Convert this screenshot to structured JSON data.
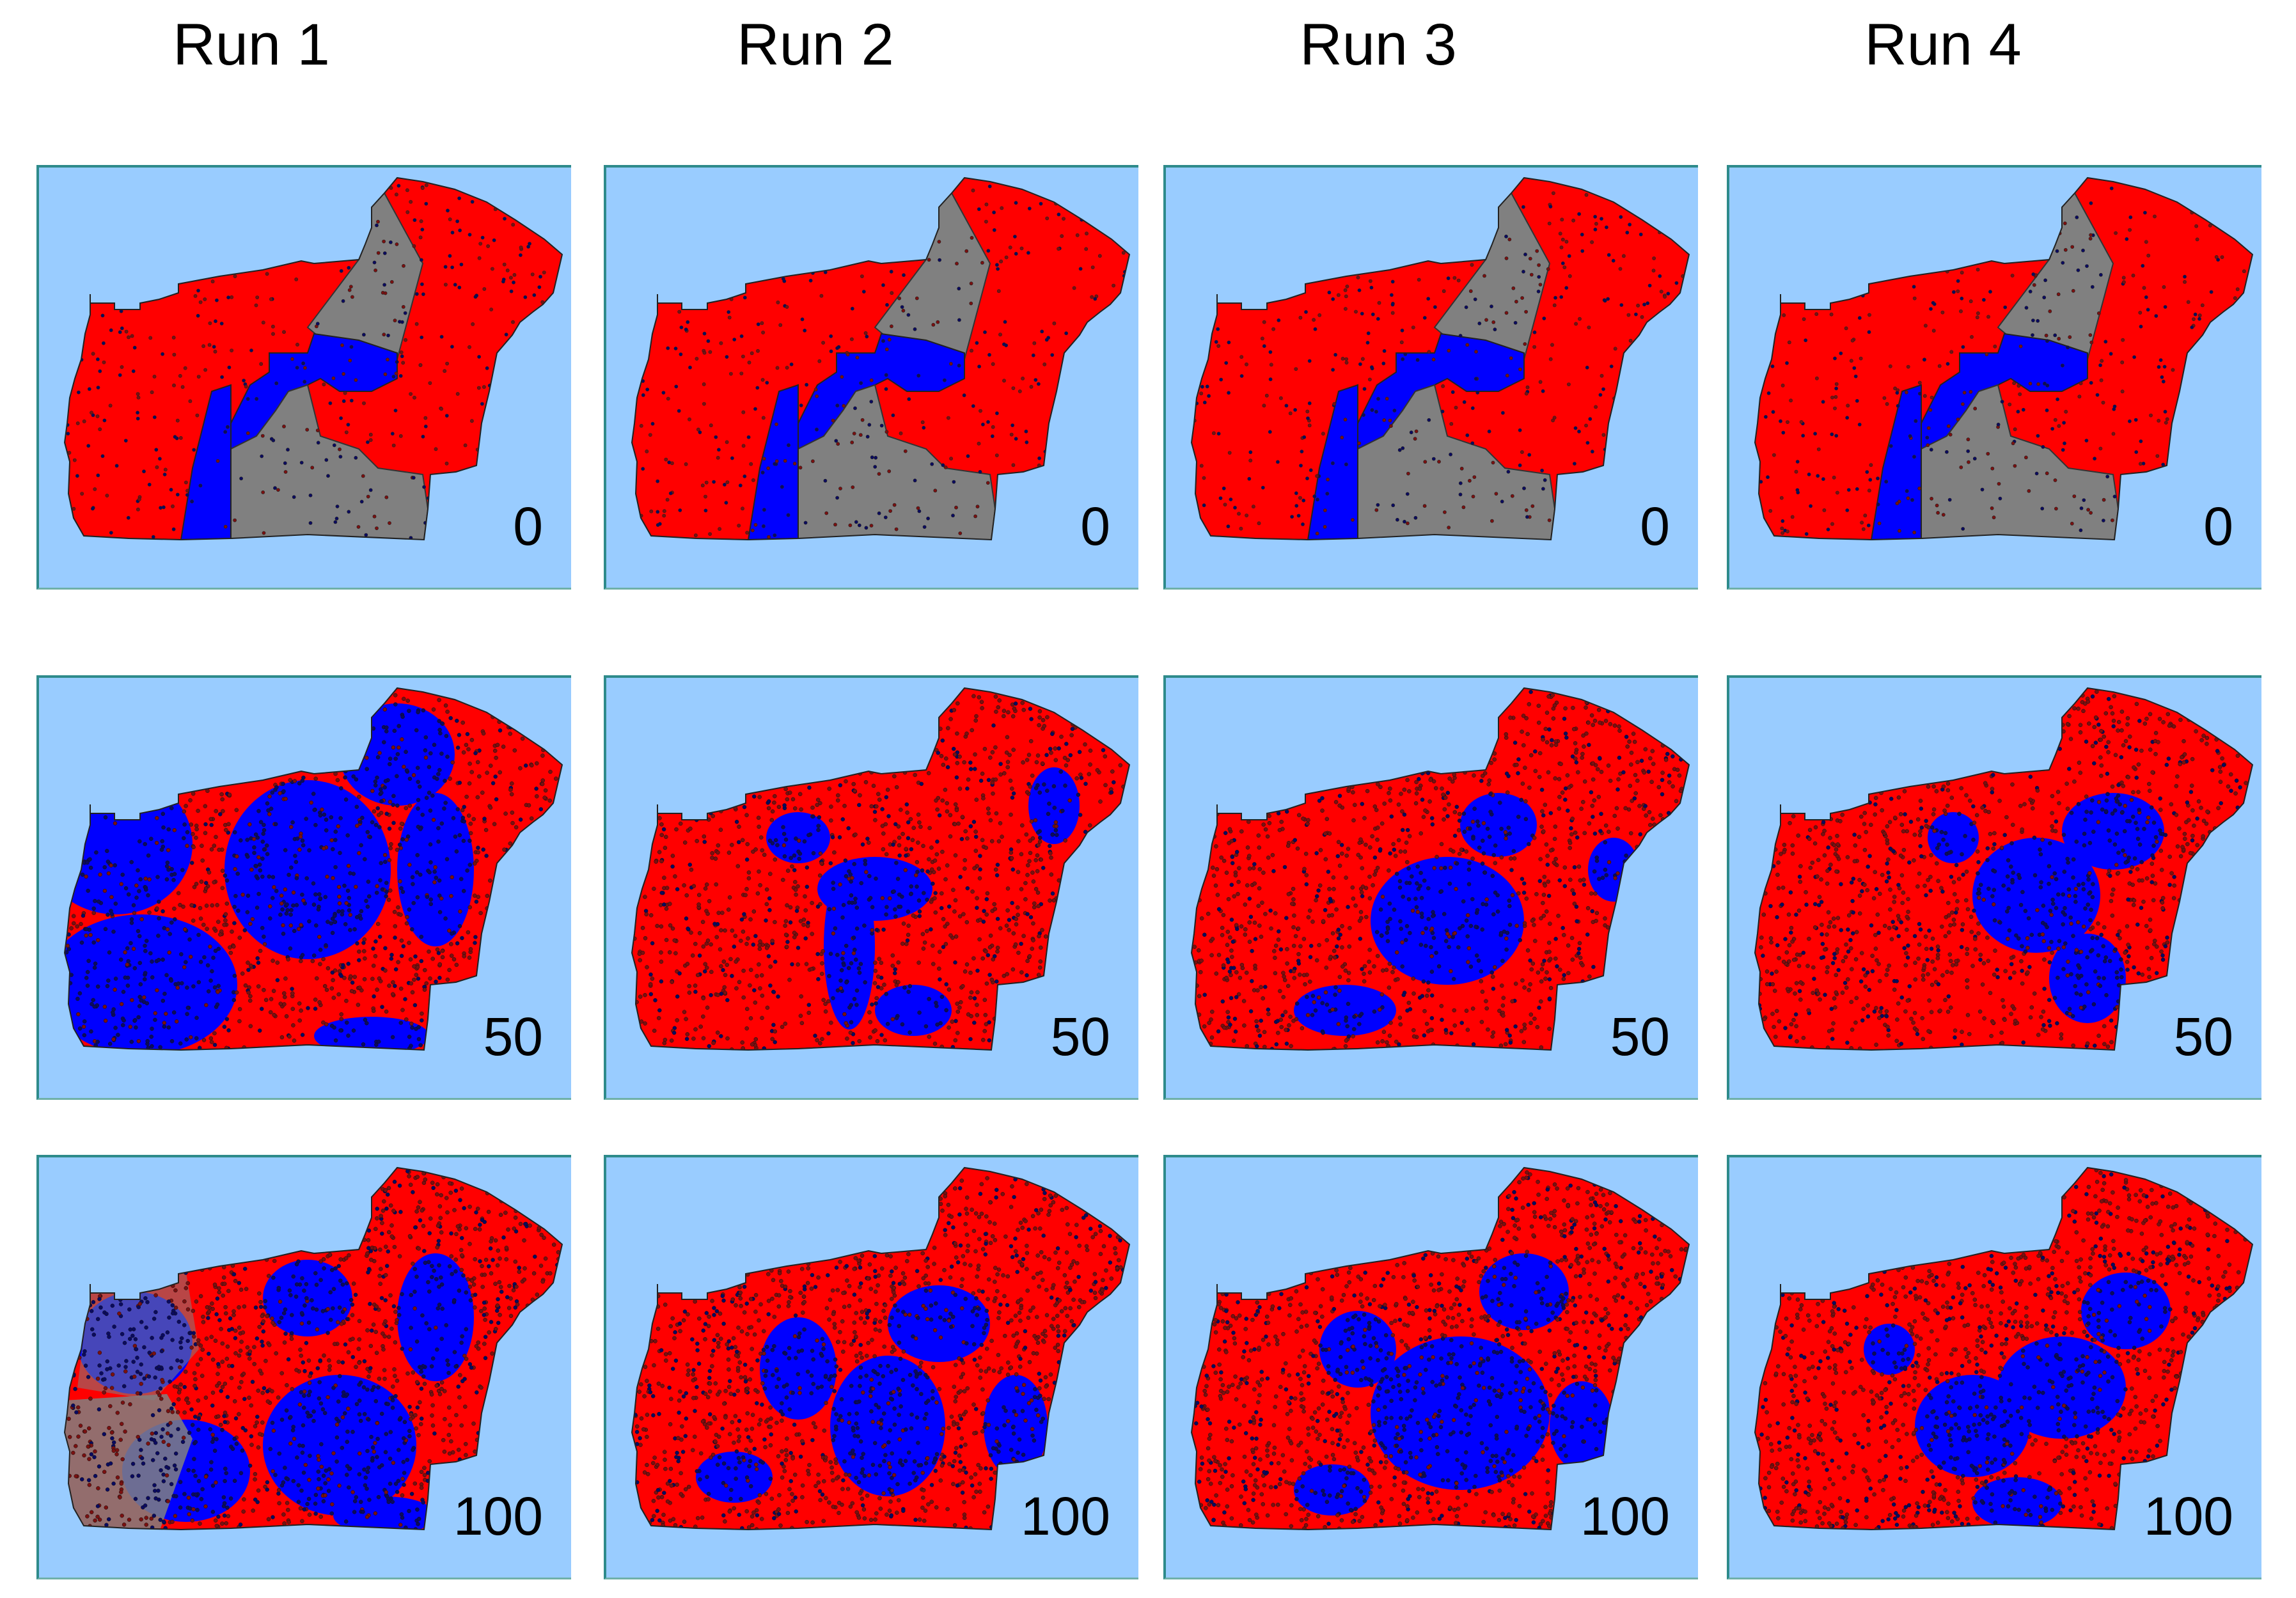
{
  "columns": [
    {
      "title": "Run 1"
    },
    {
      "title": "Run 2"
    },
    {
      "title": "Run 3"
    },
    {
      "title": "Run 4"
    }
  ],
  "rows": [
    {
      "step": "0"
    },
    {
      "step": "50"
    },
    {
      "step": "100"
    }
  ],
  "colors": {
    "background": "#99ccff",
    "red": "#ff0000",
    "blue": "#0000ff",
    "gray": "#808080",
    "dark_red_dots": "#7a1010",
    "navy_dots": "#0a0a60"
  }
}
